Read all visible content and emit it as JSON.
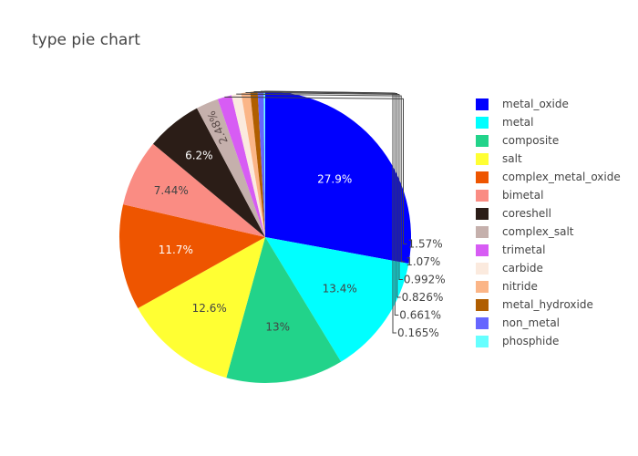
{
  "chart_data": {
    "type": "pie",
    "title": "type pie chart",
    "legend_position": "right",
    "slices": [
      {
        "label": "metal_oxide",
        "percent": 27.9,
        "text": "27.9%",
        "color": "#0000ff"
      },
      {
        "label": "metal",
        "percent": 13.4,
        "text": "13.4%",
        "color": "#00ffff"
      },
      {
        "label": "composite",
        "percent": 13.0,
        "text": "13%",
        "color": "#22d38a"
      },
      {
        "label": "salt",
        "percent": 12.6,
        "text": "12.6%",
        "color": "#ffff33"
      },
      {
        "label": "complex_metal_oxide",
        "percent": 11.7,
        "text": "11.7%",
        "color": "#ee5500"
      },
      {
        "label": "bimetal",
        "percent": 7.44,
        "text": "7.44%",
        "color": "#fa8c83"
      },
      {
        "label": "coreshell",
        "percent": 6.2,
        "text": "6.2%",
        "color": "#2b1d17"
      },
      {
        "label": "complex_salt",
        "percent": 2.48,
        "text": "2.48%",
        "color": "#c5b0ac"
      },
      {
        "label": "trimetal",
        "percent": 1.57,
        "text": "1.57%",
        "color": "#d75cf4"
      },
      {
        "label": "carbide",
        "percent": 1.07,
        "text": "1.07%",
        "color": "#fbeade"
      },
      {
        "label": "nitride",
        "percent": 0.992,
        "text": "0.992%",
        "color": "#fbb587"
      },
      {
        "label": "metal_hydroxide",
        "percent": 0.826,
        "text": "0.826%",
        "color": "#b05e00"
      },
      {
        "label": "non_metal",
        "percent": 0.661,
        "text": "0.661%",
        "color": "#6666ff"
      },
      {
        "label": "phosphide",
        "percent": 0.165,
        "text": "0.165%",
        "color": "#66ffff"
      }
    ]
  }
}
